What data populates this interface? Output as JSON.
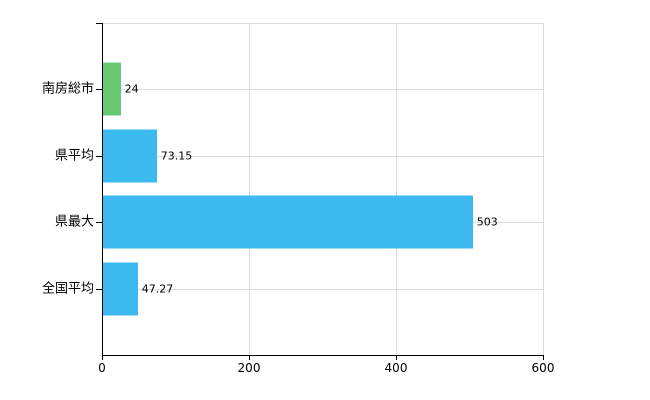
{
  "chart_data": {
    "type": "bar",
    "orientation": "horizontal",
    "title": "",
    "xlabel": "",
    "ylabel": "",
    "categories": [
      "南房総市",
      "県平均",
      "県最大",
      "全国平均"
    ],
    "values": [
      24,
      73.15,
      503,
      47.27
    ],
    "value_labels": [
      "24",
      "73.15",
      "503",
      "47.27"
    ],
    "series": [
      {
        "name": "南房総市",
        "value": 24,
        "color": "#68c973"
      },
      {
        "name": "県平均",
        "value": 73.15,
        "color": "#3cbaef"
      },
      {
        "name": "県最大",
        "value": 503,
        "color": "#3cbaef"
      },
      {
        "name": "全国平均",
        "value": 47.27,
        "color": "#3cbaef"
      }
    ],
    "bar_colors": [
      "#68c973",
      "#3cbaef",
      "#3cbaef",
      "#3cbaef"
    ],
    "xlim": [
      0,
      600
    ],
    "x_ticks": [
      0,
      200,
      400,
      600
    ],
    "x_tick_labels": [
      "0",
      "200",
      "400",
      "600"
    ],
    "grid": true,
    "legend": false
  },
  "colors": {
    "background": "#ffffff",
    "axis": "#000000",
    "gridline": "#d8dcd8",
    "text": "#000000",
    "bar_blue": "#3cbaef",
    "bar_green": "#68c973"
  }
}
